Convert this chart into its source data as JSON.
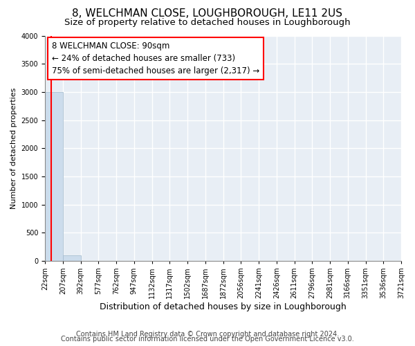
{
  "title": "8, WELCHMAN CLOSE, LOUGHBOROUGH, LE11 2US",
  "subtitle": "Size of property relative to detached houses in Loughborough",
  "xlabel": "Distribution of detached houses by size in Loughborough",
  "ylabel": "Number of detached properties",
  "bar_values": [
    3000,
    100,
    0,
    0,
    0,
    0,
    0,
    0,
    0,
    0,
    0,
    0,
    0,
    0,
    0,
    0,
    0,
    0,
    0,
    0
  ],
  "bar_color": "#ccdcec",
  "bar_edge_color": "#a0b8cc",
  "categories": [
    "22sqm",
    "207sqm",
    "392sqm",
    "577sqm",
    "762sqm",
    "947sqm",
    "1132sqm",
    "1317sqm",
    "1502sqm",
    "1687sqm",
    "1872sqm",
    "2056sqm",
    "2241sqm",
    "2426sqm",
    "2611sqm",
    "2796sqm",
    "2981sqm",
    "3166sqm",
    "3351sqm",
    "3536sqm",
    "3721sqm"
  ],
  "ylim": [
    0,
    4000
  ],
  "yticks": [
    0,
    500,
    1000,
    1500,
    2000,
    2500,
    3000,
    3500,
    4000
  ],
  "annotation_line1": "8 WELCHMAN CLOSE: 90sqm",
  "annotation_line2": "← 24% of detached houses are smaller (733)",
  "annotation_line3": "75% of semi-detached houses are larger (2,317) →",
  "footnote1": "Contains HM Land Registry data © Crown copyright and database right 2024.",
  "footnote2": "Contains public sector information licensed under the Open Government Licence v3.0.",
  "bg_color": "#e8eef5",
  "grid_color": "#ffffff",
  "title_fontsize": 11,
  "subtitle_fontsize": 9.5,
  "annotation_fontsize": 8.5,
  "ylabel_fontsize": 8,
  "xlabel_fontsize": 9,
  "footnote_fontsize": 7,
  "tick_fontsize": 7
}
